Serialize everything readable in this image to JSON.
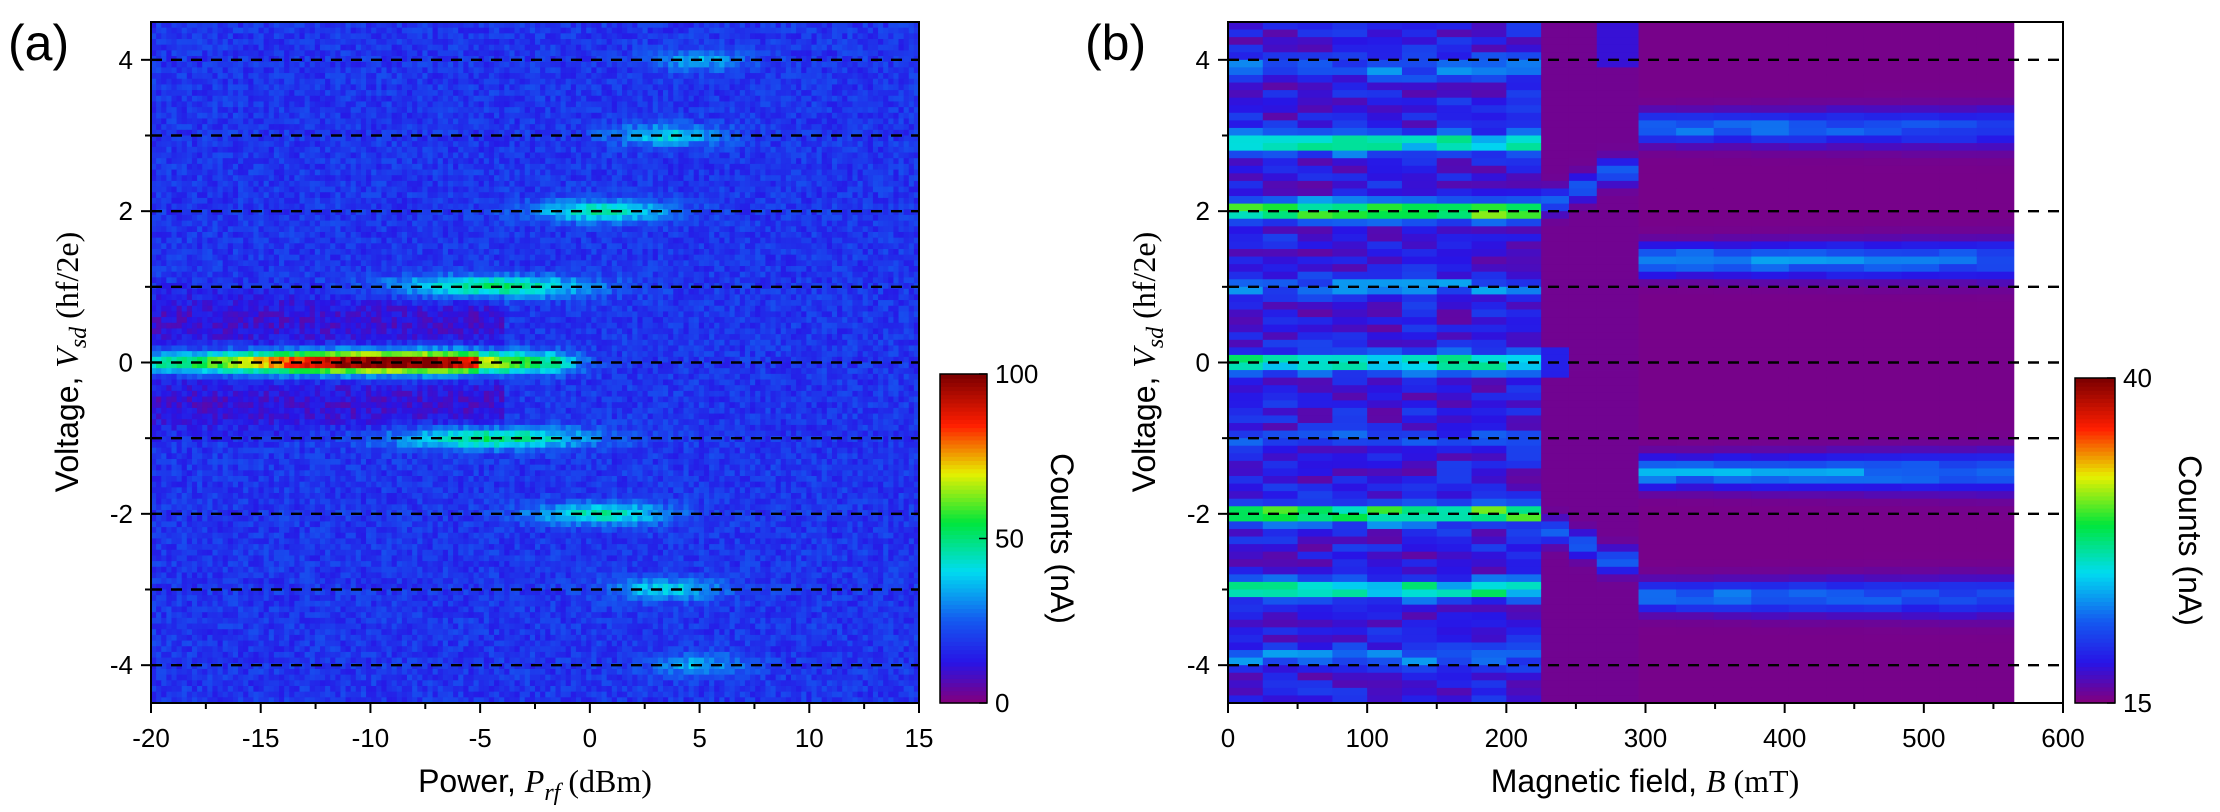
{
  "figure_labels": [
    "(a)",
    "(b)"
  ],
  "chart_data": [
    {
      "type": "heatmap",
      "panel": "(a)",
      "xlabel": {
        "prefix": "Power, ",
        "symbol": "P",
        "subscript": "rf",
        "unit": " (dBm)"
      },
      "ylabel": {
        "prefix": "Voltage, ",
        "symbol": "V",
        "subscript": "sd",
        "unit": " (hf/2e)"
      },
      "xlim": [
        -20,
        15
      ],
      "ylim": [
        -4.5,
        4.5
      ],
      "xticks": [
        "-20",
        "-15",
        "-10",
        "-5",
        "0",
        "5",
        "10",
        "15"
      ],
      "yticks": [
        "-4",
        "-2",
        "0",
        "2",
        "4"
      ],
      "reference_lines_y": [
        -4,
        -3,
        -2,
        -1,
        0,
        1,
        2,
        3,
        4
      ],
      "colorbar": {
        "label": "Counts (nA)",
        "min": 0,
        "max": 100,
        "ticks": [
          "0",
          "50",
          "100"
        ]
      },
      "background_counts": 18,
      "bands": [
        {
          "n": 0,
          "peak_counts": 90,
          "center_power": -9,
          "width_dBm": 7
        },
        {
          "n": 1,
          "peak_counts": 52,
          "center_power": -4.5,
          "width_dBm": 4.5
        },
        {
          "n": -1,
          "peak_counts": 52,
          "center_power": -4.5,
          "width_dBm": 4.5
        },
        {
          "n": 2,
          "peak_counts": 46,
          "center_power": 0.5,
          "width_dBm": 3.2
        },
        {
          "n": -2,
          "peak_counts": 46,
          "center_power": 0.5,
          "width_dBm": 3.2
        },
        {
          "n": 3,
          "peak_counts": 40,
          "center_power": 3.5,
          "width_dBm": 2.6
        },
        {
          "n": -3,
          "peak_counts": 40,
          "center_power": 3.5,
          "width_dBm": 2.6
        },
        {
          "n": 4,
          "peak_counts": 35,
          "center_power": 5,
          "width_dBm": 2.2
        },
        {
          "n": -4,
          "peak_counts": 35,
          "center_power": 5,
          "width_dBm": 2.2
        }
      ]
    },
    {
      "type": "heatmap",
      "panel": "(b)",
      "xlabel": {
        "prefix": "Magnetic field, ",
        "symbol": "B",
        "subscript": "",
        "unit": " (mT)"
      },
      "ylabel": {
        "prefix": "Voltage, ",
        "symbol": "V",
        "subscript": "sd",
        "unit": " (hf/2e)"
      },
      "xlim": [
        0,
        600
      ],
      "ylim": [
        -4.5,
        4.5
      ],
      "data_xmax": 565,
      "xticks": [
        "0",
        "100",
        "200",
        "300",
        "400",
        "500",
        "600"
      ],
      "yticks": [
        "-4",
        "-2",
        "0",
        "2",
        "4"
      ],
      "reference_lines_y": [
        -4,
        -2,
        -1,
        0,
        1,
        2,
        4
      ],
      "colorbar": {
        "label": "Counts (nA)",
        "min": 15,
        "max": 40,
        "ticks": [
          "15",
          "40"
        ]
      },
      "transition_field_mT": 225,
      "background_counts": 15,
      "low_field_bands": [
        {
          "v": 0,
          "counts": 27
        },
        {
          "v": 2,
          "counts": 30
        },
        {
          "v": -2,
          "counts": 30
        },
        {
          "v": 2.9,
          "counts": 27
        },
        {
          "v": -3,
          "counts": 27
        },
        {
          "v": 1,
          "counts": 22
        },
        {
          "v": -1,
          "counts": 20
        },
        {
          "v": 3.9,
          "counts": 22
        },
        {
          "v": -3.9,
          "counts": 22
        }
      ],
      "high_field_bands": [
        {
          "v": 1.35,
          "counts": 21
        },
        {
          "v": -1.45,
          "counts": 21
        },
        {
          "v": 3.1,
          "counts": 20
        },
        {
          "v": -3.1,
          "counts": 20
        }
      ]
    }
  ]
}
